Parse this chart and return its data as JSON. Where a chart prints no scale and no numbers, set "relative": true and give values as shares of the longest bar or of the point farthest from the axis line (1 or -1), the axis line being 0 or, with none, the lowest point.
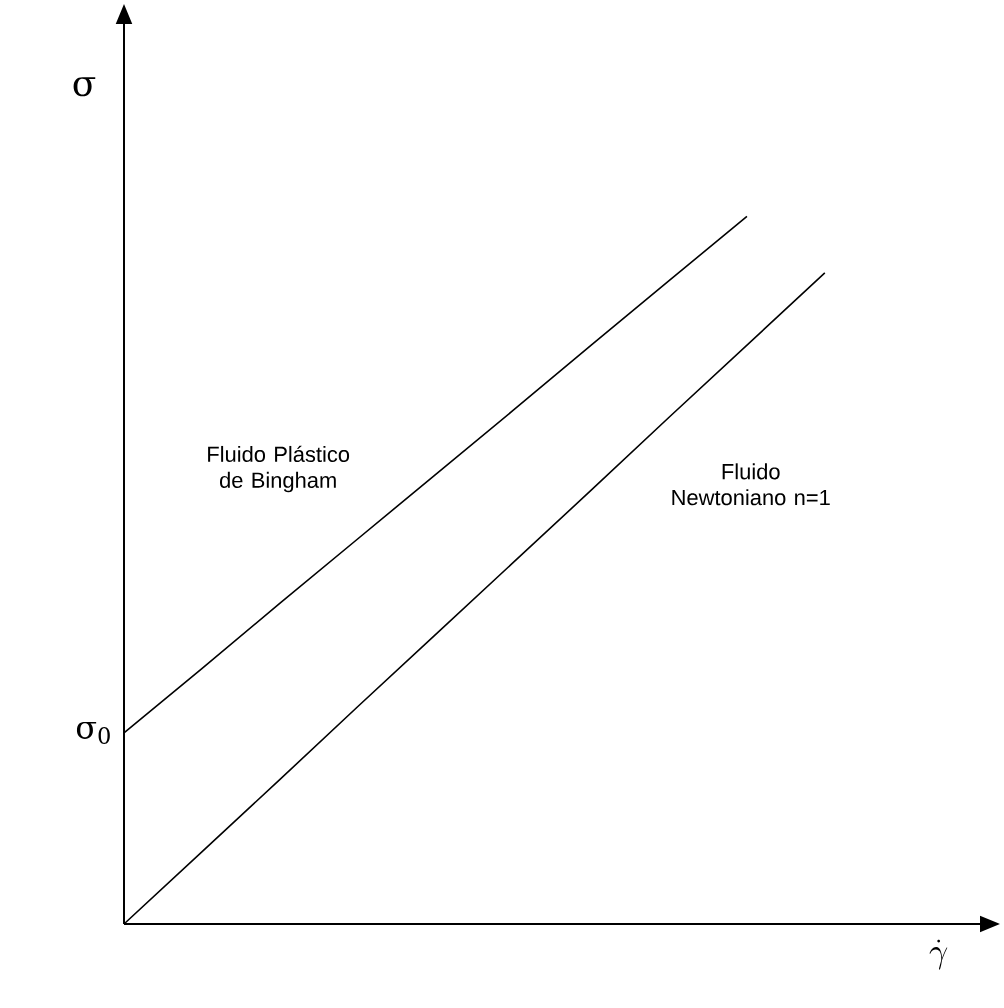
{
  "chart_data": {
    "type": "line",
    "relative": true,
    "xlabel": "\\dot{\\gamma}",
    "ylabel": "σ",
    "marker": "none",
    "line_style": "solid",
    "categories": [
      null,
      null,
      null,
      null,
      null,
      null,
      null,
      null,
      null,
      null
    ],
    "series": [
      {
        "name": "Fluido Plástico de Bingham",
        "color": "#000000",
        "values": [
          0.27,
          0.361,
          0.453,
          0.544,
          0.635,
          0.726,
          0.818,
          0.909,
          1.0,
          null
        ]
      },
      {
        "name": "Fluido Newtoniano n=1",
        "color": "#000000",
        "values": [
          0,
          0.102,
          0.204,
          0.307,
          0.409,
          0.511,
          0.613,
          0.716,
          0.818,
          0.92
        ]
      }
    ],
    "annotations": [
      "σ$_{0}$"
    ]
  }
}
